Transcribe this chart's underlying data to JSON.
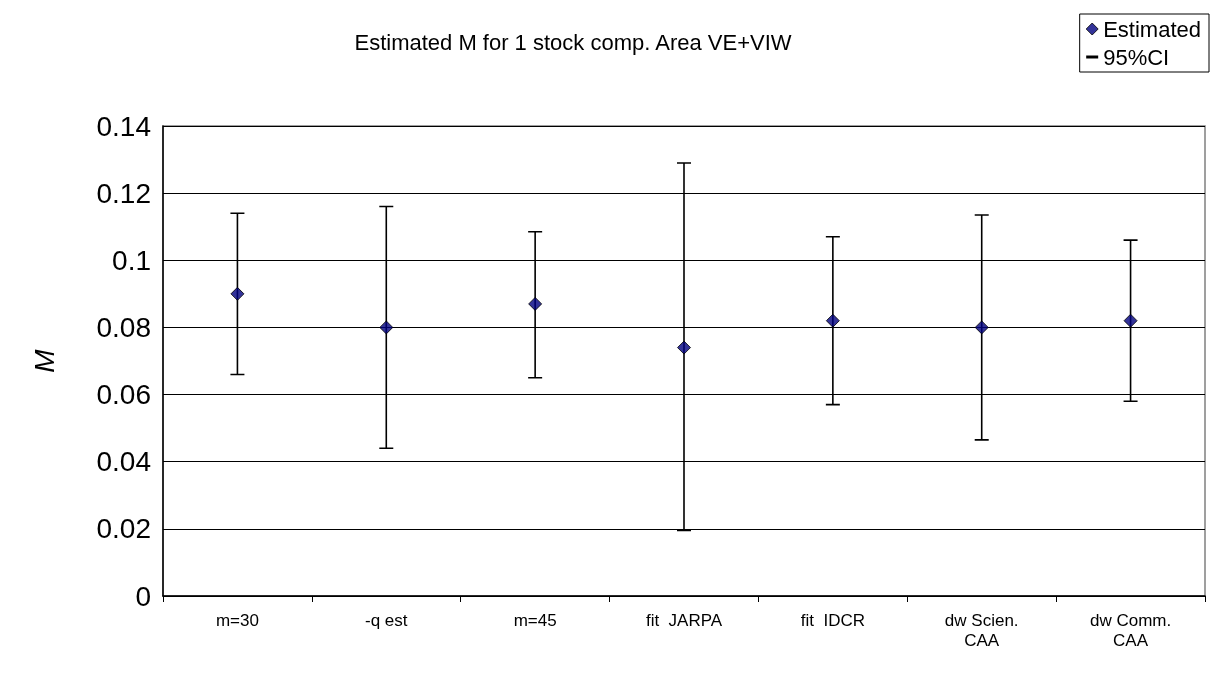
{
  "chart_data": {
    "type": "scatter",
    "title": "Estimated M for 1 stock comp. Area VE+VIW",
    "ylabel": "M",
    "categories": [
      "m=30",
      "-q est",
      "m=45",
      "fit  JARPA",
      "fit  IDCR",
      "dw Scien.\nCAA",
      "dw Comm.\nCAA"
    ],
    "series": [
      {
        "name": "Estimated",
        "color": "#000080",
        "marker": "diamond",
        "values": [
          0.09,
          0.08,
          0.087,
          0.074,
          0.082,
          0.08,
          0.082
        ],
        "errors": [
          [
            0.066,
            0.114
          ],
          [
            0.044,
            0.116
          ],
          [
            0.065,
            0.1085
          ],
          [
            0.0195,
            0.129
          ],
          [
            0.057,
            0.107
          ],
          [
            0.0465,
            0.1135
          ],
          [
            0.058,
            0.106
          ]
        ]
      }
    ],
    "annotations": [
      "95%CI"
    ],
    "ylim": [
      0,
      0.14
    ],
    "yticks": [
      0,
      0.02,
      0.04,
      0.06,
      0.08,
      0.1,
      0.12,
      0.14
    ],
    "grid": "y",
    "legend": "top right"
  }
}
